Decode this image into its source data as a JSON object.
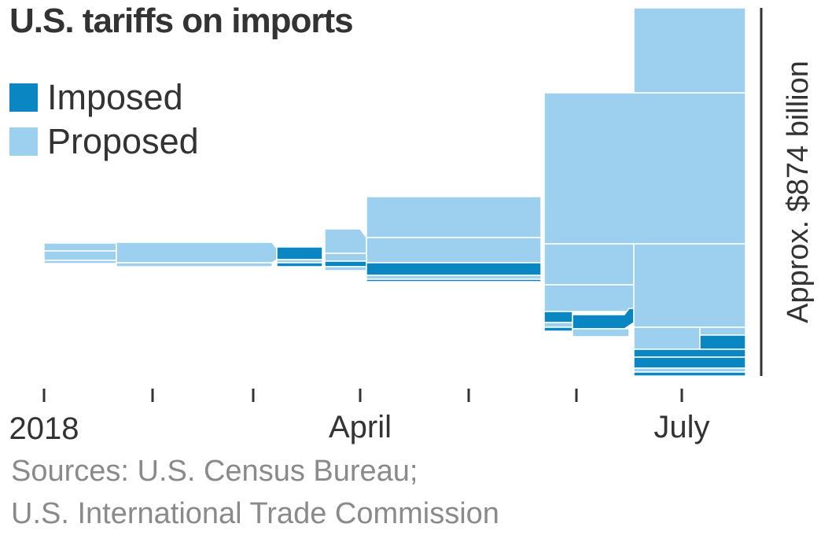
{
  "title": "U.S. tariffs on imports",
  "legend": [
    {
      "label": "Imposed",
      "color": "#0a86c3"
    },
    {
      "label": "Proposed",
      "color": "#9dcfef"
    }
  ],
  "source": [
    "Sources: U.S. Census Bureau;",
    "U.S. International Trade Commission"
  ],
  "chart_data": {
    "type": "area",
    "title": "U.S. tariffs on imports",
    "x_tick_labels": [
      "2018",
      "April",
      "July"
    ],
    "x_tick_count": 10,
    "annotation": "Approx. $874 billion",
    "grid": false,
    "legend_position": "top-left",
    "series": [
      {
        "name": "Imposed",
        "color": "#0a86c3"
      },
      {
        "name": "Proposed",
        "color": "#9dcfef"
      }
    ]
  }
}
